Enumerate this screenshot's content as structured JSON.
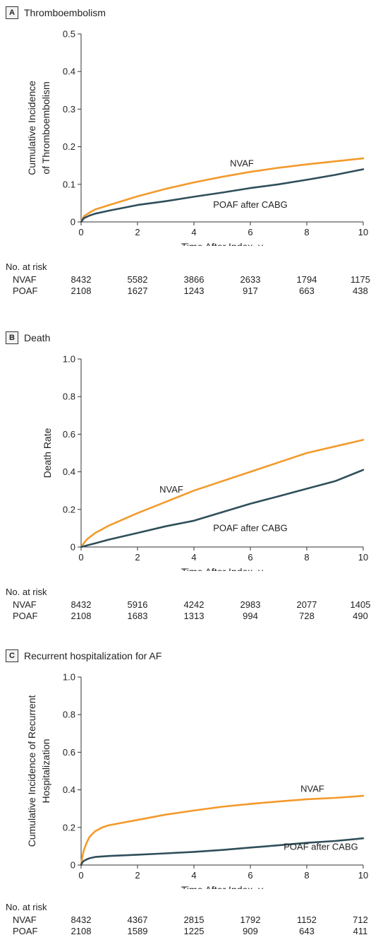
{
  "risk_header": "No. at risk",
  "colors": {
    "nvaf": "#f39a2b",
    "poaf": "#2f4f5a",
    "axis": "#333333"
  },
  "chart_data": [
    {
      "id": "a",
      "type": "line",
      "panel_letter": "A",
      "title": "Thromboembolism",
      "ylabel_lines": [
        "Cumulative Incidence",
        "of Thromboembolism"
      ],
      "xlabel": "Time After Index, y",
      "xlim": [
        0,
        10
      ],
      "ylim": [
        0,
        0.5
      ],
      "xticks": [
        0,
        2,
        4,
        6,
        8,
        10
      ],
      "xtick_labels": [
        "0",
        "2",
        "4",
        "6",
        "8",
        "10"
      ],
      "yticks": [
        0,
        0.1,
        0.2,
        0.3,
        0.4,
        0.5
      ],
      "ytick_labels": [
        "0",
        "0.1",
        "0.2",
        "0.3",
        "0.4",
        "0.5"
      ],
      "series": [
        {
          "name": "NVAF",
          "key": "nvaf",
          "x": [
            0,
            0.1,
            0.3,
            0.5,
            1,
            2,
            3,
            4,
            5,
            6,
            7,
            8,
            9,
            10
          ],
          "y": [
            0,
            0.015,
            0.025,
            0.033,
            0.045,
            0.068,
            0.088,
            0.105,
            0.12,
            0.133,
            0.144,
            0.153,
            0.161,
            0.169
          ]
        },
        {
          "name": "POAF after CABG",
          "key": "poaf",
          "x": [
            0,
            0.1,
            0.3,
            0.5,
            1,
            2,
            3,
            4,
            5,
            6,
            7,
            8,
            9,
            10
          ],
          "y": [
            0,
            0.01,
            0.017,
            0.022,
            0.03,
            0.045,
            0.055,
            0.067,
            0.078,
            0.09,
            0.1,
            0.112,
            0.125,
            0.14
          ]
        }
      ],
      "labels": [
        {
          "text": "NVAF",
          "x": 5.7,
          "y": 0.148,
          "key": "nvaf"
        },
        {
          "text": "POAF after CABG",
          "x": 6.0,
          "y": 0.038,
          "key": "poaf"
        }
      ],
      "risk": {
        "times": [
          0,
          2,
          4,
          6,
          8,
          10
        ],
        "rows": [
          {
            "label": "NVAF",
            "values": [
              "8432",
              "5582",
              "3866",
              "2633",
              "1794",
              "1175"
            ]
          },
          {
            "label": "POAF",
            "values": [
              "2108",
              "1627",
              "1243",
              "917",
              "663",
              "438"
            ]
          }
        ]
      }
    },
    {
      "id": "b",
      "type": "line",
      "panel_letter": "B",
      "title": "Death",
      "ylabel_lines": [
        "Death Rate"
      ],
      "xlabel": "Time After Index, y",
      "xlim": [
        0,
        10
      ],
      "ylim": [
        0,
        1.0
      ],
      "xticks": [
        0,
        2,
        4,
        6,
        8,
        10
      ],
      "xtick_labels": [
        "0",
        "2",
        "4",
        "6",
        "8",
        "10"
      ],
      "yticks": [
        0,
        0.2,
        0.4,
        0.6,
        0.8,
        1.0
      ],
      "ytick_labels": [
        "0",
        "0.2",
        "0.4",
        "0.6",
        "0.8",
        "1.0"
      ],
      "series": [
        {
          "name": "NVAF",
          "key": "nvaf",
          "x": [
            0,
            0.2,
            0.5,
            1,
            2,
            3,
            4,
            5,
            6,
            7,
            8,
            9,
            10
          ],
          "y": [
            0,
            0.04,
            0.075,
            0.115,
            0.18,
            0.24,
            0.3,
            0.35,
            0.4,
            0.45,
            0.5,
            0.535,
            0.57
          ]
        },
        {
          "name": "POAF after CABG",
          "key": "poaf",
          "x": [
            0,
            0.5,
            1,
            2,
            3,
            4,
            5,
            6,
            7,
            8,
            9,
            10
          ],
          "y": [
            0,
            0.02,
            0.04,
            0.075,
            0.11,
            0.14,
            0.185,
            0.23,
            0.27,
            0.31,
            0.35,
            0.41
          ]
        }
      ],
      "labels": [
        {
          "text": "NVAF",
          "x": 3.2,
          "y": 0.29,
          "key": "nvaf"
        },
        {
          "text": "POAF after CABG",
          "x": 6.0,
          "y": 0.085,
          "key": "poaf"
        }
      ],
      "risk": {
        "times": [
          0,
          2,
          4,
          6,
          8,
          10
        ],
        "rows": [
          {
            "label": "NVAF",
            "values": [
              "8432",
              "5916",
              "4242",
              "2983",
              "2077",
              "1405"
            ]
          },
          {
            "label": "POAF",
            "values": [
              "2108",
              "1683",
              "1313",
              "994",
              "728",
              "490"
            ]
          }
        ]
      }
    },
    {
      "id": "c",
      "type": "line",
      "panel_letter": "C",
      "title": "Recurrent hospitalization for AF",
      "ylabel_lines": [
        "Cumulative Incidence of Recurrent",
        "Hospitalization"
      ],
      "xlabel": "Time After Index, y",
      "xlim": [
        0,
        10
      ],
      "ylim": [
        0,
        1.0
      ],
      "xticks": [
        0,
        2,
        4,
        6,
        8,
        10
      ],
      "xtick_labels": [
        "0",
        "2",
        "4",
        "6",
        "8",
        "10"
      ],
      "yticks": [
        0,
        0.2,
        0.4,
        0.6,
        0.8,
        1.0
      ],
      "ytick_labels": [
        "0",
        "0.2",
        "0.4",
        "0.6",
        "0.8",
        "1.0"
      ],
      "series": [
        {
          "name": "NVAF",
          "key": "nvaf",
          "x": [
            0,
            0.05,
            0.1,
            0.2,
            0.3,
            0.5,
            0.75,
            1,
            2,
            3,
            4,
            5,
            6,
            7,
            8,
            9,
            10
          ],
          "y": [
            0,
            0.05,
            0.08,
            0.12,
            0.15,
            0.18,
            0.2,
            0.212,
            0.24,
            0.268,
            0.29,
            0.31,
            0.325,
            0.338,
            0.35,
            0.357,
            0.368
          ]
        },
        {
          "name": "POAF after CABG",
          "key": "poaf",
          "x": [
            0,
            0.05,
            0.1,
            0.2,
            0.3,
            0.5,
            1,
            2,
            3,
            4,
            5,
            6,
            7,
            8,
            9,
            10
          ],
          "y": [
            0,
            0.015,
            0.022,
            0.03,
            0.036,
            0.043,
            0.048,
            0.055,
            0.062,
            0.07,
            0.08,
            0.093,
            0.105,
            0.118,
            0.128,
            0.142
          ]
        }
      ],
      "labels": [
        {
          "text": "NVAF",
          "x": 8.2,
          "y": 0.39,
          "key": "nvaf"
        },
        {
          "text": "POAF after CABG",
          "x": 8.5,
          "y": 0.08,
          "key": "poaf"
        }
      ],
      "risk": {
        "times": [
          0,
          2,
          4,
          6,
          8,
          10
        ],
        "rows": [
          {
            "label": "NVAF",
            "values": [
              "8432",
              "4367",
              "2815",
              "1792",
              "1152",
              "712"
            ]
          },
          {
            "label": "POAF",
            "values": [
              "2108",
              "1589",
              "1225",
              "909",
              "643",
              "411"
            ]
          }
        ]
      }
    }
  ]
}
